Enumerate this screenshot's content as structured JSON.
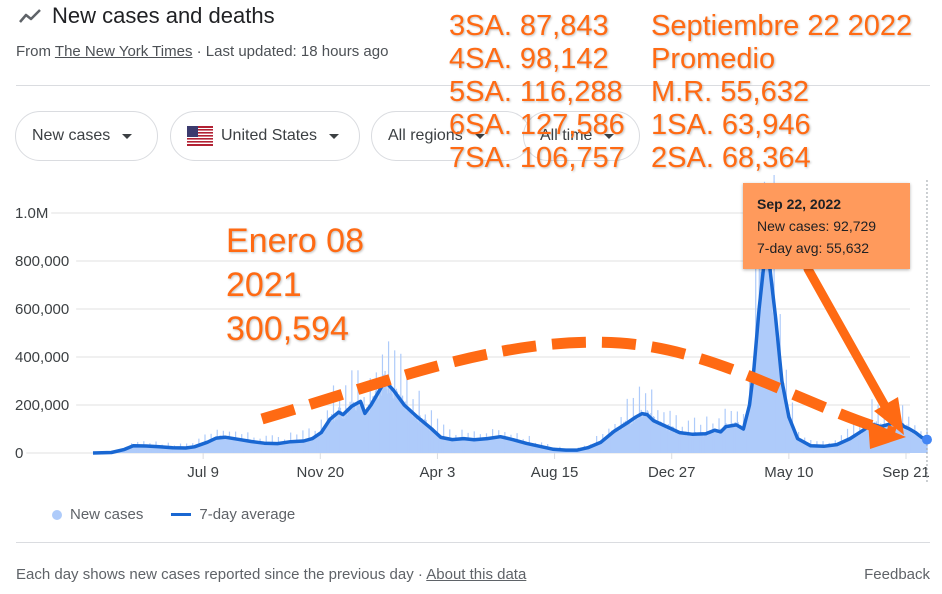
{
  "header": {
    "icon": "trending-line-icon",
    "title": "New cases and deaths",
    "source_prefix": "From ",
    "source_link": "The New York Times",
    "updated": " · Last updated: 18 hours ago"
  },
  "filters": [
    {
      "label": "New cases"
    },
    {
      "label": "United States",
      "icon": "us-flag-icon"
    },
    {
      "label": "All regions"
    },
    {
      "label": "All time"
    }
  ],
  "tooltip": {
    "date": "Sep 22, 2022",
    "new_cases": "New cases: 92,729",
    "avg": "7-day avg: 55,632"
  },
  "legend": {
    "new_cases": "New cases",
    "avg": "7-day average"
  },
  "footer": {
    "note": "Each day shows new cases reported since the previous day",
    "sep": " · ",
    "about_link": "About this data",
    "feedback": "Feedback"
  },
  "annotations": {
    "weeks_left": [
      "3SA. 87,843",
      "4SA. 98,142",
      "5SA. 116,288",
      "6SA. 127,586",
      "7SA. 106,757"
    ],
    "weeks_right": [
      "Septiembre 22 2022",
      "Promedio",
      "M.R. 55,632",
      "1SA. 63,946",
      "2SA. 68,364"
    ],
    "enero": [
      "Enero 08",
      "2021",
      "300,594"
    ],
    "accent_color": "#ff6a13"
  },
  "colors": {
    "bars": "#aecbfa",
    "line": "#1967d2",
    "grid": "#ebebeb",
    "tooltip_bg": "#ff9a5c"
  },
  "chart_data": {
    "type": "area",
    "title": "New cases and deaths",
    "xlabel": "",
    "ylabel": "",
    "y_ticks": [
      "0",
      "200,000",
      "400,000",
      "600,000",
      "800,000",
      "1.0M"
    ],
    "y_tick_values": [
      0,
      200000,
      400000,
      600000,
      800000,
      1000000
    ],
    "ylim": [
      0,
      1150000
    ],
    "x_ticks": [
      "Jul 9",
      "Nov 20",
      "Apr 3",
      "Aug 15",
      "Dec 27",
      "May 10",
      "Sep 21"
    ],
    "x_tick_days": [
      160,
      294,
      428,
      562,
      696,
      830,
      964
    ],
    "x_range_days": [
      34,
      965
    ],
    "grid": true,
    "legend_position": "bottom-left",
    "series": [
      {
        "name": "7-day average",
        "type": "line",
        "points": [
          [
            34,
            0
          ],
          [
            55,
            2000
          ],
          [
            70,
            15000
          ],
          [
            80,
            30000
          ],
          [
            95,
            29000
          ],
          [
            110,
            26000
          ],
          [
            125,
            22000
          ],
          [
            140,
            21000
          ],
          [
            150,
            26000
          ],
          [
            165,
            45000
          ],
          [
            175,
            62000
          ],
          [
            185,
            66000
          ],
          [
            200,
            57000
          ],
          [
            215,
            48000
          ],
          [
            230,
            41000
          ],
          [
            245,
            39000
          ],
          [
            260,
            47000
          ],
          [
            275,
            50000
          ],
          [
            285,
            60000
          ],
          [
            295,
            85000
          ],
          [
            305,
            140000
          ],
          [
            315,
            170000
          ],
          [
            320,
            160000
          ],
          [
            330,
            195000
          ],
          [
            340,
            215000
          ],
          [
            345,
            165000
          ],
          [
            352,
            200000
          ],
          [
            360,
            250000
          ],
          [
            368,
            300594
          ],
          [
            378,
            260000
          ],
          [
            390,
            200000
          ],
          [
            405,
            150000
          ],
          [
            420,
            105000
          ],
          [
            432,
            65000
          ],
          [
            445,
            56000
          ],
          [
            458,
            60000
          ],
          [
            470,
            55000
          ],
          [
            485,
            60000
          ],
          [
            500,
            68000
          ],
          [
            515,
            55000
          ],
          [
            530,
            40000
          ],
          [
            545,
            28000
          ],
          [
            560,
            16000
          ],
          [
            575,
            12000
          ],
          [
            588,
            12000
          ],
          [
            600,
            22000
          ],
          [
            615,
            45000
          ],
          [
            630,
            90000
          ],
          [
            645,
            125000
          ],
          [
            655,
            150000
          ],
          [
            662,
            164000
          ],
          [
            668,
            160000
          ],
          [
            675,
            135000
          ],
          [
            690,
            110000
          ],
          [
            705,
            85000
          ],
          [
            720,
            78000
          ],
          [
            735,
            80000
          ],
          [
            745,
            95000
          ],
          [
            752,
            88000
          ],
          [
            758,
            110000
          ],
          [
            770,
            117000
          ],
          [
            778,
            100000
          ],
          [
            785,
            200000
          ],
          [
            790,
            350000
          ],
          [
            796,
            600000
          ],
          [
            802,
            805000
          ],
          [
            808,
            780000
          ],
          [
            815,
            560000
          ],
          [
            822,
            300000
          ],
          [
            830,
            150000
          ],
          [
            840,
            60000
          ],
          [
            855,
            30000
          ],
          [
            870,
            28000
          ],
          [
            885,
            35000
          ],
          [
            900,
            60000
          ],
          [
            915,
            95000
          ],
          [
            925,
            120000
          ],
          [
            935,
            110000
          ],
          [
            945,
            120000
          ],
          [
            955,
            130000
          ],
          [
            962,
            110000
          ],
          [
            968,
            100000
          ],
          [
            975,
            85000
          ],
          [
            982,
            65000
          ],
          [
            988,
            55632
          ]
        ]
      },
      {
        "name": "New cases",
        "type": "bar",
        "note": "daily values; rendered as spiky bars around the 7-day average, peak ~1.13M in Jan 2022",
        "peak": 1130000,
        "last": 92729
      }
    ]
  }
}
